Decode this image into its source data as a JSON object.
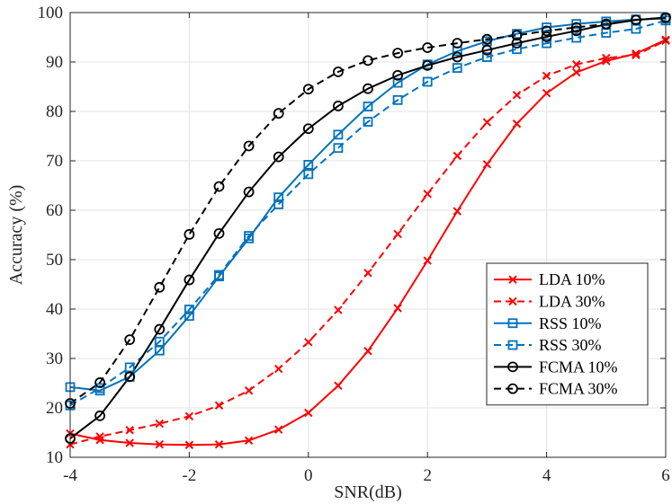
{
  "chart_data": {
    "type": "line",
    "title": "",
    "xlabel": "SNR(dB)",
    "ylabel": "Accuracy (%)",
    "xlim": [
      -4,
      6
    ],
    "ylim": [
      10,
      100
    ],
    "xticks": [
      -4,
      -2,
      0,
      2,
      4,
      6
    ],
    "yticks": [
      10,
      20,
      30,
      40,
      50,
      60,
      70,
      80,
      90,
      100
    ],
    "grid": true,
    "legend_position": "lower-right",
    "x": [
      -4,
      -3.5,
      -3,
      -2.5,
      -2,
      -1.5,
      -1,
      -0.5,
      0,
      0.5,
      1,
      1.5,
      2,
      2.5,
      3,
      3.5,
      4,
      4.5,
      5,
      5.5,
      6
    ],
    "series": [
      {
        "name": "LDA 10%",
        "color": "#ff0000",
        "dash": "solid",
        "marker": "x",
        "values": [
          14.8,
          13.5,
          12.9,
          12.6,
          12.5,
          12.6,
          13.4,
          15.6,
          19.0,
          24.5,
          31.5,
          40.2,
          49.8,
          59.8,
          69.3,
          77.5,
          83.7,
          87.9,
          90.2,
          91.7,
          94.5
        ]
      },
      {
        "name": "LDA 30%",
        "color": "#ff0000",
        "dash": "dashed",
        "marker": "x",
        "values": [
          12.6,
          14.2,
          15.5,
          16.8,
          18.3,
          20.5,
          23.5,
          27.9,
          33.3,
          39.8,
          47.3,
          55.2,
          63.3,
          71.0,
          77.8,
          83.3,
          87.2,
          89.5,
          90.8,
          91.4,
          94.3
        ]
      },
      {
        "name": "RSS 10%",
        "color": "#0072bd",
        "dash": "solid",
        "marker": "square",
        "values": [
          24.2,
          23.5,
          26.3,
          31.6,
          38.6,
          46.6,
          54.3,
          62.6,
          69.2,
          75.3,
          81.0,
          85.8,
          89.5,
          92.2,
          94.2,
          95.7,
          97.0,
          97.7,
          98.2,
          98.6,
          98.8
        ]
      },
      {
        "name": "RSS 30%",
        "color": "#0072bd",
        "dash": "dashed",
        "marker": "square",
        "values": [
          20.5,
          24.0,
          28.2,
          33.4,
          39.9,
          46.9,
          54.8,
          61.2,
          67.3,
          72.6,
          77.9,
          82.3,
          86.0,
          88.8,
          91.0,
          92.6,
          93.8,
          94.9,
          95.9,
          96.7,
          98.4
        ]
      },
      {
        "name": "FCMA 10%",
        "color": "#000000",
        "dash": "solid",
        "marker": "circle",
        "values": [
          13.8,
          18.4,
          26.3,
          35.9,
          45.9,
          55.3,
          63.7,
          70.8,
          76.5,
          81.1,
          84.6,
          87.3,
          89.3,
          91.0,
          92.4,
          93.8,
          95.1,
          96.3,
          97.6,
          98.5,
          99.0
        ]
      },
      {
        "name": "FCMA 30%",
        "color": "#000000",
        "dash": "dashed",
        "marker": "circle",
        "values": [
          20.9,
          25.1,
          33.8,
          44.4,
          55.1,
          64.8,
          73.0,
          79.6,
          84.5,
          88.0,
          90.3,
          91.8,
          92.9,
          93.8,
          94.6,
          95.4,
          96.3,
          97.0,
          97.7,
          98.5,
          99.0
        ]
      }
    ]
  }
}
